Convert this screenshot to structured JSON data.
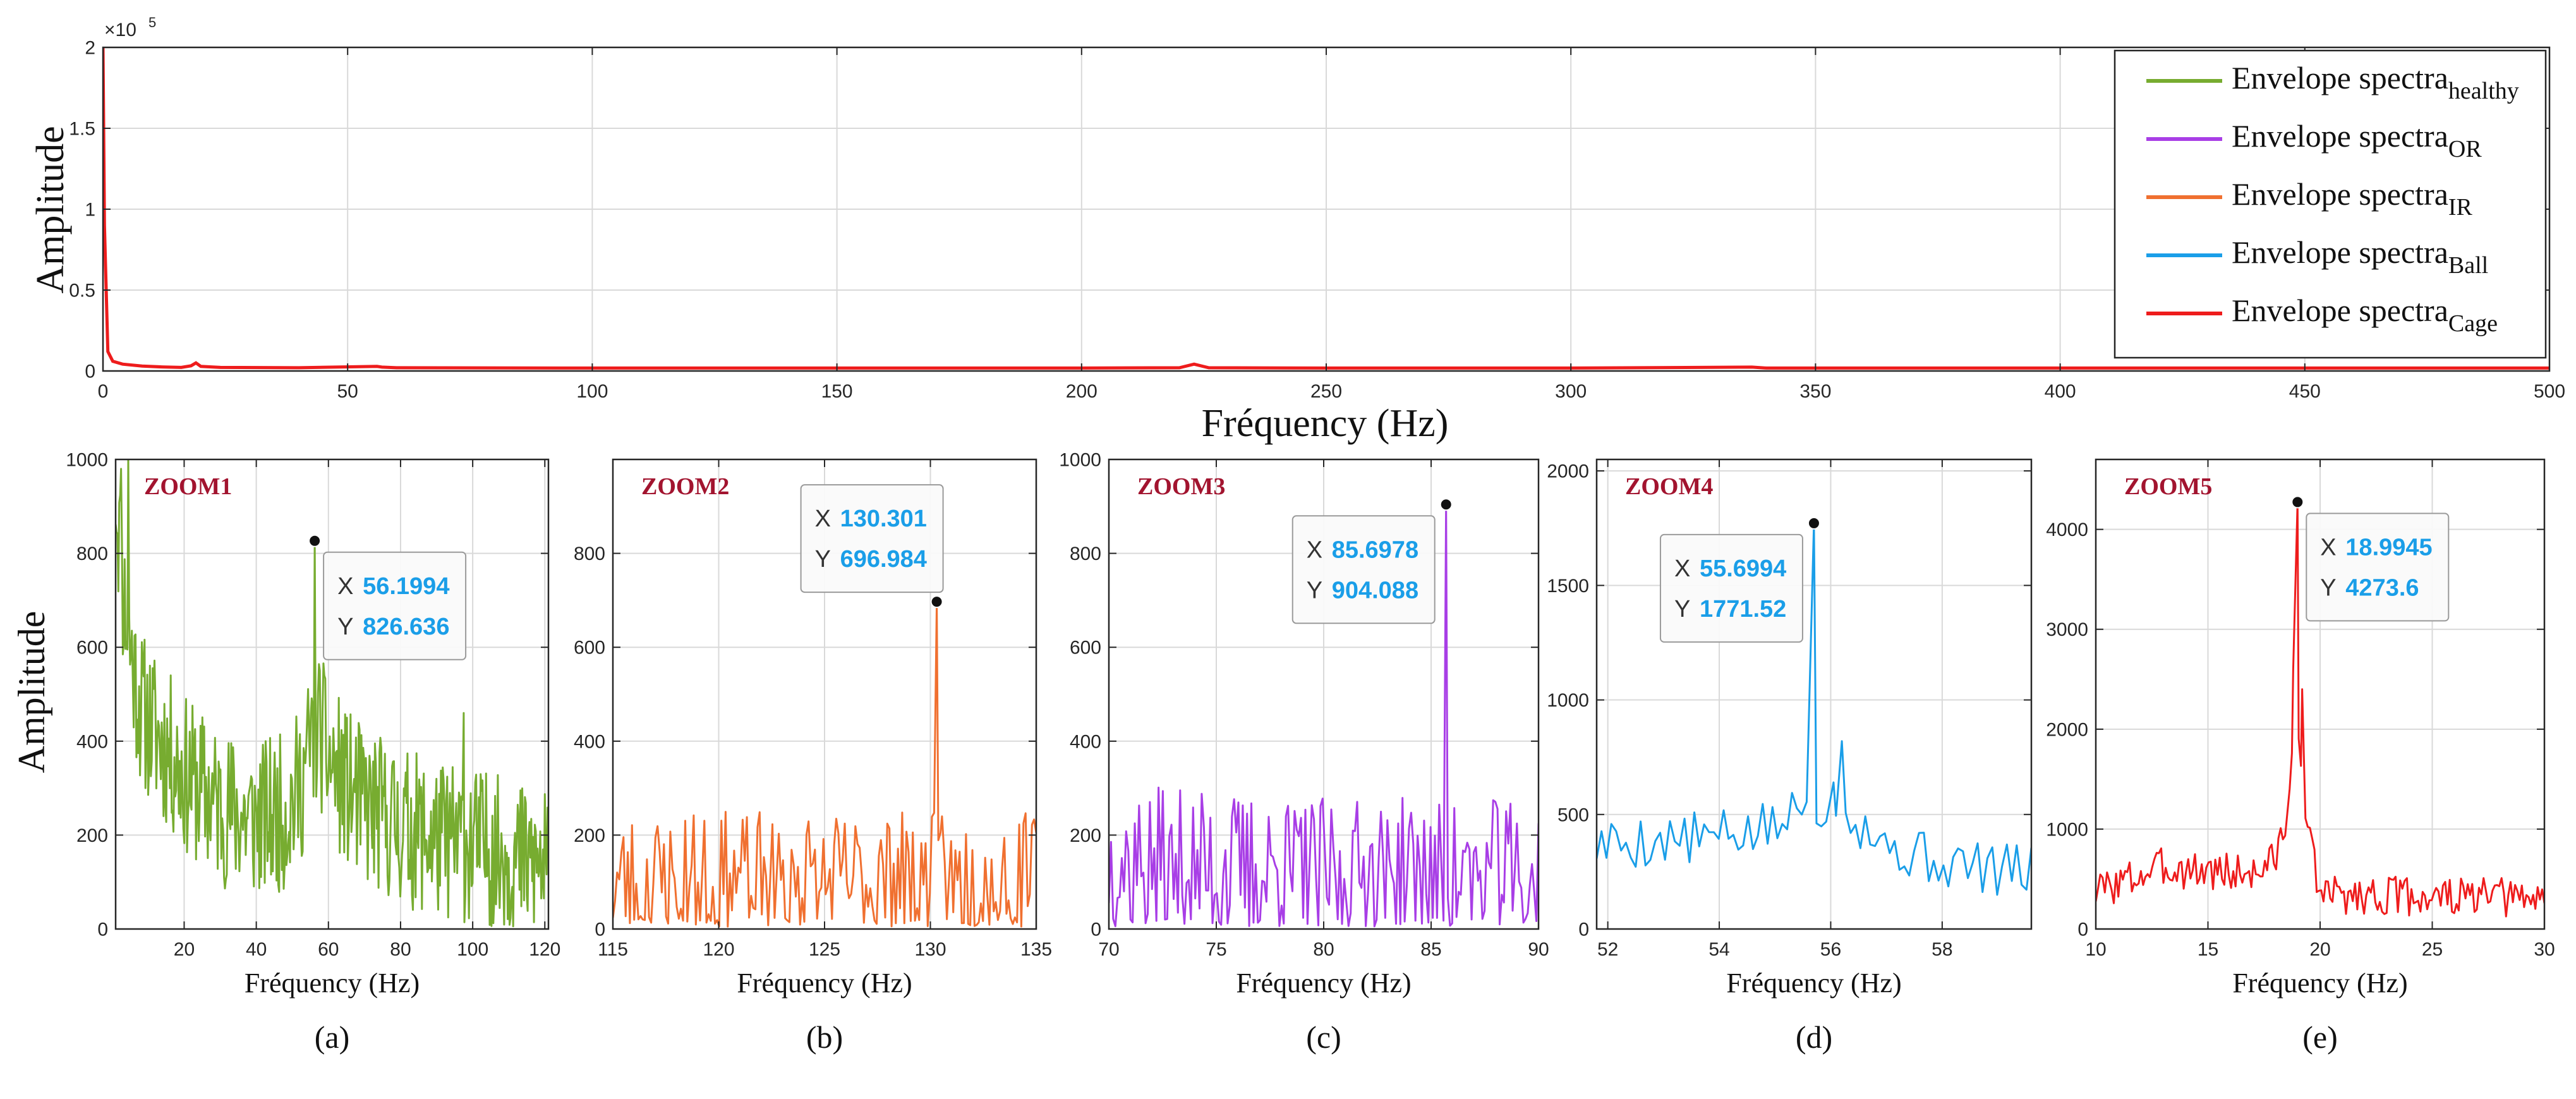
{
  "colors": {
    "healthy": "#77ac30",
    "or": "#a83ee6",
    "ir": "#f07030",
    "ball": "#1a9ee8",
    "cage": "#ee1c1c",
    "zoom_label": "#a2142f",
    "datatip_value": "#1a9ee8",
    "grid": "#d9d9d9"
  },
  "chart_data": [
    {
      "id": "top",
      "type": "line",
      "title": "",
      "xlabel": "Fréquency (Hz)",
      "ylabel": "Amplitude",
      "xlim": [
        0,
        500
      ],
      "ylim": [
        0,
        200000
      ],
      "xticks": [
        0,
        50,
        100,
        150,
        200,
        250,
        300,
        350,
        400,
        450,
        500
      ],
      "xtick_labels": [
        "0",
        "50",
        "100",
        "150",
        "200",
        "250",
        "300",
        "350",
        "400",
        "450",
        "500"
      ],
      "yticks": [
        0,
        50000,
        100000,
        150000,
        200000
      ],
      "ytick_labels": [
        "0",
        "0.5",
        "1",
        "1.5",
        "2"
      ],
      "exponent_label": "×10",
      "exponent_power": "5",
      "grid": true,
      "legend_position": "top-right",
      "legend": [
        {
          "base": "Envelope spectra",
          "sub": "healthy",
          "color_key": "healthy"
        },
        {
          "base": "Envelope spectra",
          "sub": "OR",
          "color_key": "or"
        },
        {
          "base": "Envelope spectra",
          "sub": "IR",
          "color_key": "ir"
        },
        {
          "base": "Envelope spectra",
          "sub": "Ball",
          "color_key": "ball"
        },
        {
          "base": "Envelope spectra",
          "sub": "Cage",
          "color_key": "cage"
        }
      ],
      "series": [
        {
          "name": "Envelope spectra Cage",
          "color_key": "cage",
          "x": [
            0,
            0.3,
            1,
            2,
            4,
            8,
            12,
            16,
            18,
            19,
            20,
            24,
            40,
            56,
            57,
            60,
            100,
            150,
            200,
            220,
            223,
            226,
            250,
            300,
            337,
            340,
            350,
            400,
            450,
            500
          ],
          "y": [
            200000,
            90000,
            12000,
            6000,
            4200,
            3000,
            2500,
            2200,
            3200,
            5000,
            2800,
            2200,
            2000,
            2800,
            2400,
            2000,
            1800,
            1800,
            1800,
            2000,
            4200,
            2000,
            1800,
            1800,
            2400,
            1800,
            1800,
            1800,
            1800,
            1800
          ]
        }
      ]
    },
    {
      "id": "a",
      "type": "line",
      "panel_label": "(a)",
      "zoom_label": "ZOOM1",
      "xlabel": "Fréquency (Hz)",
      "ylabel": "Amplitude",
      "xlim": [
        1,
        121
      ],
      "ylim": [
        0,
        1000
      ],
      "xticks": [
        20,
        40,
        60,
        80,
        100,
        120
      ],
      "xtick_labels": [
        "20",
        "40",
        "60",
        "80",
        "100",
        "120"
      ],
      "yticks": [
        0,
        200,
        400,
        600,
        800,
        1000
      ],
      "ytick_labels": [
        "0",
        "200",
        "400",
        "600",
        "800",
        "1000"
      ],
      "grid": true,
      "color_key": "healthy",
      "n_points": 480,
      "baseline": [
        [
          1,
          950
        ],
        [
          3,
          720
        ],
        [
          5,
          600
        ],
        [
          8,
          470
        ],
        [
          12,
          420
        ],
        [
          20,
          330
        ],
        [
          30,
          260
        ],
        [
          40,
          230
        ],
        [
          48,
          250
        ],
        [
          52,
          300
        ],
        [
          55,
          390
        ],
        [
          57,
          440
        ],
        [
          60,
          360
        ],
        [
          65,
          300
        ],
        [
          70,
          260
        ],
        [
          80,
          220
        ],
        [
          90,
          190
        ],
        [
          100,
          180
        ],
        [
          110,
          150
        ],
        [
          121,
          130
        ]
      ],
      "noise": 170,
      "seed": 11,
      "peaks": [
        [
          56.1994,
          826.636
        ],
        [
          97.5,
          460
        ],
        [
          4.5,
          1000
        ],
        [
          2.5,
          980
        ]
      ],
      "datatip": {
        "x_label": "X",
        "x_value": "56.1994",
        "y_label": "Y",
        "y_value": "826.636",
        "x": 56.1994,
        "y": 826.636,
        "placement": "right"
      }
    },
    {
      "id": "b",
      "type": "line",
      "panel_label": "(b)",
      "zoom_label": "ZOOM2",
      "xlabel": "Fréquency (Hz)",
      "ylabel": "",
      "xlim": [
        115,
        135
      ],
      "ylim": [
        0,
        1000
      ],
      "xticks": [
        115,
        120,
        125,
        130,
        135
      ],
      "xtick_labels": [
        "115",
        "120",
        "125",
        "130",
        "135"
      ],
      "yticks": [
        0,
        200,
        400,
        600,
        800
      ],
      "ytick_labels": [
        "0",
        "200",
        "400",
        "600",
        "800"
      ],
      "grid": true,
      "color_key": "ir",
      "n_points": 200,
      "baseline": [
        [
          115,
          100
        ],
        [
          135,
          100
        ]
      ],
      "noise": 150,
      "seed": 23,
      "peaks": [
        [
          130.301,
          696.984
        ],
        [
          130.55,
          240
        ]
      ],
      "datatip": {
        "x_label": "X",
        "x_value": "130.301",
        "y_label": "Y",
        "y_value": "696.984",
        "x": 130.301,
        "y": 696.984,
        "placement": "upper-left"
      }
    },
    {
      "id": "c",
      "type": "line",
      "panel_label": "(c)",
      "zoom_label": "ZOOM3",
      "xlabel": "Fréquency (Hz)",
      "ylabel": "",
      "xlim": [
        70,
        90
      ],
      "ylim": [
        0,
        1000
      ],
      "xticks": [
        70,
        75,
        80,
        85,
        90
      ],
      "xtick_labels": [
        "70",
        "75",
        "80",
        "85",
        "90"
      ],
      "yticks": [
        0,
        200,
        400,
        600,
        800,
        1000
      ],
      "ytick_labels": [
        "0",
        "200",
        "400",
        "600",
        "800",
        "1000"
      ],
      "grid": true,
      "color_key": "or",
      "n_points": 200,
      "baseline": [
        [
          70,
          140
        ],
        [
          80,
          110
        ],
        [
          90,
          110
        ]
      ],
      "noise": 170,
      "seed": 37,
      "peaks": [
        [
          85.6978,
          904.088
        ]
      ],
      "datatip": {
        "x_label": "X",
        "x_value": "85.6978",
        "y_label": "Y",
        "y_value": "904.088",
        "x": 85.6978,
        "y": 904.088,
        "placement": "left"
      }
    },
    {
      "id": "d",
      "type": "line",
      "panel_label": "(d)",
      "zoom_label": "ZOOM4",
      "xlabel": "Fréquency (Hz)",
      "ylabel": "",
      "xlim": [
        51.8,
        59.6
      ],
      "ylim": [
        0,
        2050
      ],
      "xticks": [
        52,
        54,
        56,
        58
      ],
      "xtick_labels": [
        "52",
        "54",
        "56",
        "58"
      ],
      "yticks": [
        0,
        500,
        1000,
        1500,
        2000
      ],
      "ytick_labels": [
        "0",
        "500",
        "1000",
        "1500",
        "2000"
      ],
      "grid": true,
      "color_key": "ball",
      "n_points": 90,
      "baseline": [
        [
          51.8,
          370
        ],
        [
          54,
          400
        ],
        [
          55,
          440
        ],
        [
          55.4,
          520
        ],
        [
          56,
          560
        ],
        [
          56.5,
          480
        ],
        [
          57,
          360
        ],
        [
          58,
          290
        ],
        [
          59.6,
          240
        ]
      ],
      "noise": 120,
      "seed": 5,
      "peaks": [
        [
          55.6994,
          1771.52
        ],
        [
          56.2,
          820
        ],
        [
          56.05,
          640
        ]
      ],
      "datatip": {
        "x_label": "X",
        "x_value": "55.6994",
        "y_label": "Y",
        "y_value": "1771.52",
        "x": 55.6994,
        "y": 1771.52,
        "placement": "left"
      }
    },
    {
      "id": "e",
      "type": "line",
      "panel_label": "(e)",
      "zoom_label": "ZOOM5",
      "xlabel": "Fréquency (Hz)",
      "ylabel": "",
      "xlim": [
        10,
        30
      ],
      "ylim": [
        0,
        4700
      ],
      "xticks": [
        10,
        15,
        20,
        25,
        30
      ],
      "xtick_labels": [
        "10",
        "15",
        "20",
        "25",
        "30"
      ],
      "yticks": [
        0,
        1000,
        2000,
        3000,
        4000
      ],
      "ytick_labels": [
        "0",
        "1000",
        "2000",
        "3000",
        "4000"
      ],
      "grid": true,
      "color_key": "cage",
      "n_points": 200,
      "baseline": [
        [
          10,
          380
        ],
        [
          13,
          620
        ],
        [
          15,
          580
        ],
        [
          17,
          560
        ],
        [
          18,
          700
        ],
        [
          18.5,
          1100
        ],
        [
          19,
          2200
        ],
        [
          19.5,
          900
        ],
        [
          20,
          350
        ],
        [
          30,
          300
        ]
      ],
      "noise": 200,
      "seed": 3,
      "peaks": [
        [
          18.9945,
          4273.6
        ],
        [
          18.8,
          2600
        ],
        [
          19.2,
          2400
        ]
      ],
      "datatip": {
        "x_label": "X",
        "x_value": "18.9945",
        "y_label": "Y",
        "y_value": "4273.6",
        "x": 18.9945,
        "y": 4273.6,
        "placement": "right"
      }
    }
  ]
}
